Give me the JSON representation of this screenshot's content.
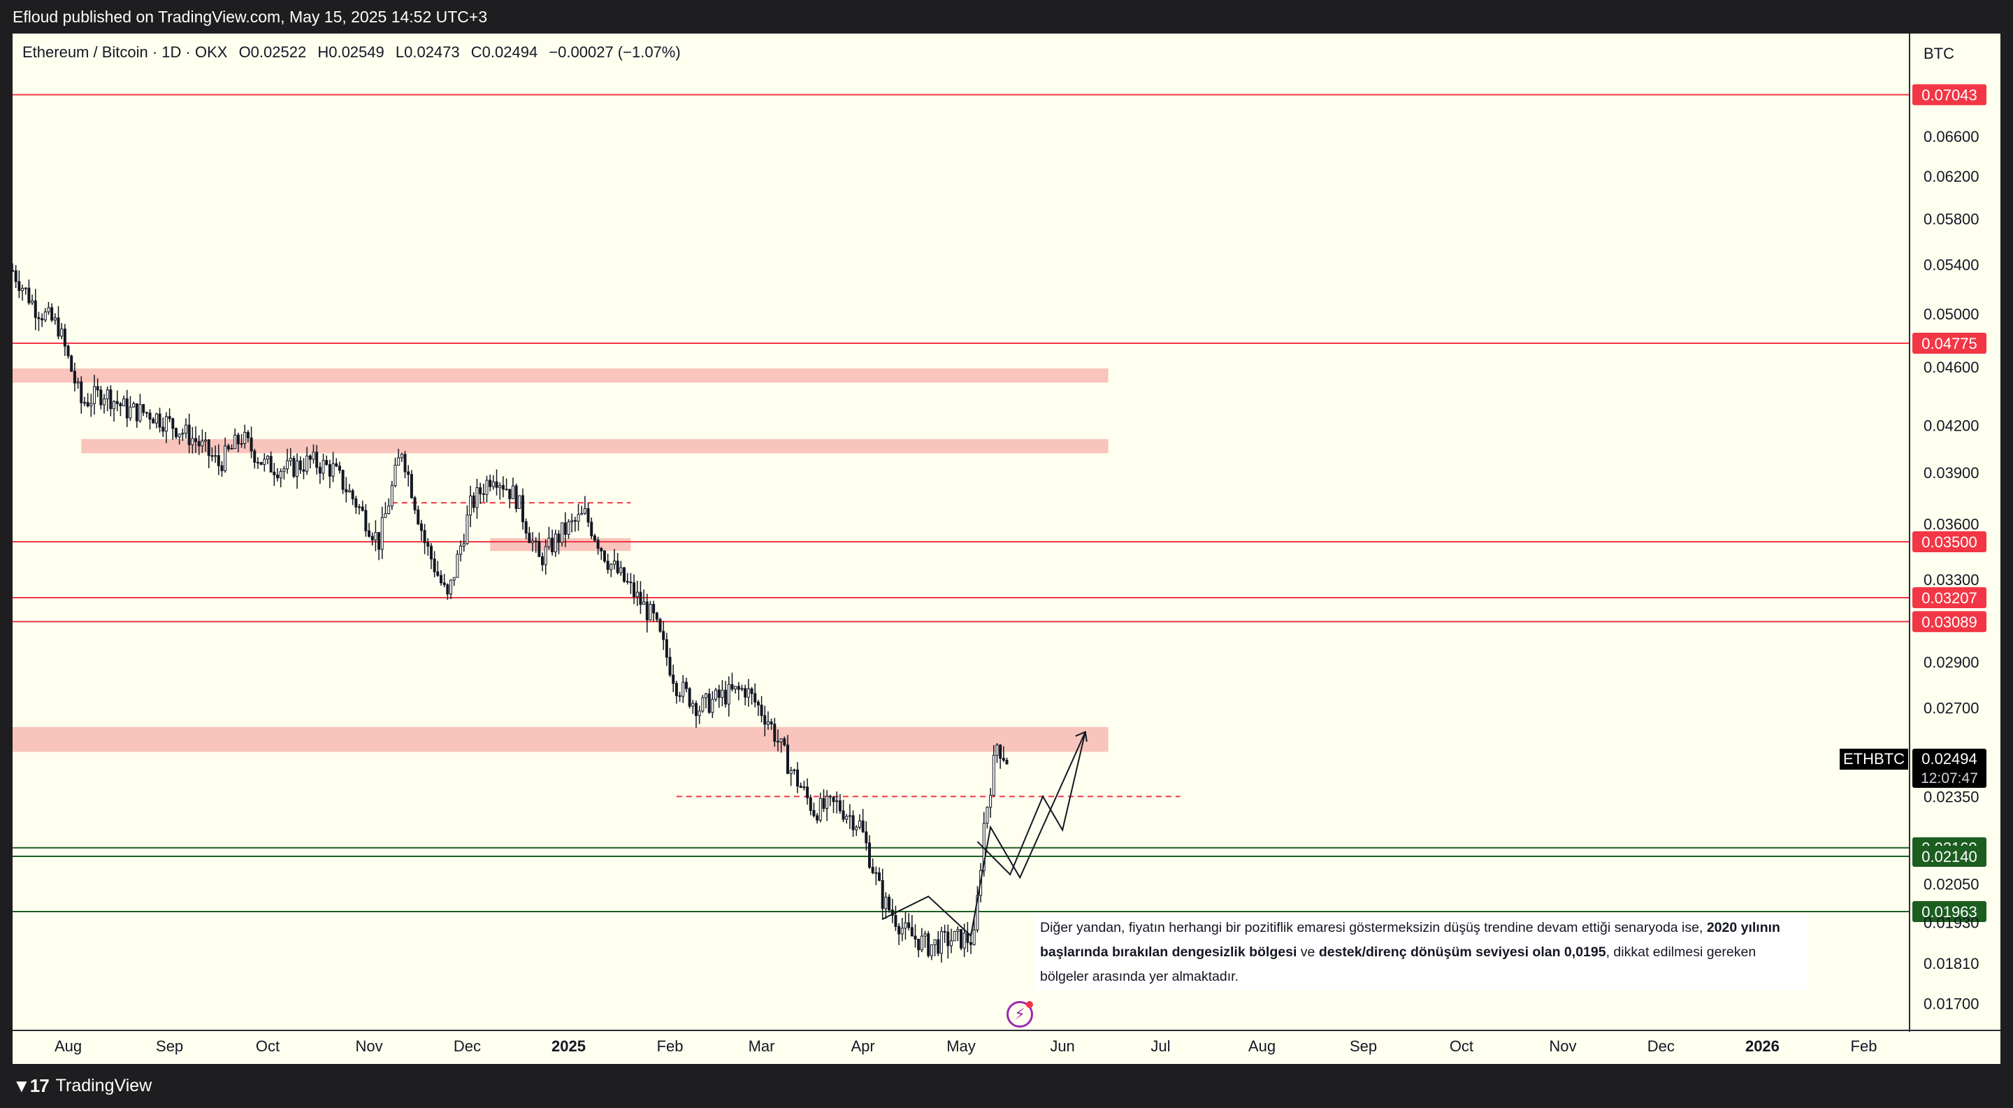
{
  "publish_info": "Efloud published on TradingView.com, May 15, 2025 14:52 UTC+3",
  "brand": "TradingView",
  "legend": {
    "symbol": "Ethereum / Bitcoin · 1D · OKX",
    "open": "O0.02522",
    "high": "H0.02549",
    "low": "L0.02473",
    "close": "C0.02494",
    "change": "−0.00027 (−1.07%)"
  },
  "currency_label": "BTC",
  "note": {
    "part1": "Diğer yandan, fiyatın herhangi bir pozitiflik emaresi göstermeksizin düşüş trendine devam ettiği senaryoda ise, ",
    "bold1": "2020 yılının başlarında bırakılan dengesizlik bölgesi",
    "part2": " ve ",
    "bold2": "destek/direnç dönüşüm seviyesi olan 0,0195",
    "part3": ", dikkat edilmesi gereken bölgeler arasında yer almaktadır."
  },
  "colors": {
    "background": "#fffff0",
    "red_level": "#f23645",
    "green_level": "#1b5e20",
    "zone": "#f8c4bc",
    "candle": "#131722"
  },
  "chart_data": {
    "type": "candlestick",
    "symbol": "ETHBTC",
    "exchange": "OKX",
    "interval": "1D",
    "y_scale": "log",
    "ylim": [
      0.0163,
      0.0775
    ],
    "x_range": [
      "2024-07-15",
      "2026-02-15"
    ],
    "y_ticks": [
      "0.06600",
      "0.06200",
      "0.05800",
      "0.05400",
      "0.05000",
      "0.04600",
      "0.04200",
      "0.03900",
      "0.03600",
      "0.03300",
      "0.02900",
      "0.02700",
      "0.02350",
      "0.02050",
      "0.01930",
      "0.01810",
      "0.01700"
    ],
    "x_ticks": [
      "Aug",
      "Sep",
      "Oct",
      "Nov",
      "Dec",
      "2025",
      "Feb",
      "Mar",
      "Apr",
      "May",
      "Jun",
      "Jul",
      "Aug",
      "Sep",
      "Oct",
      "Nov",
      "Dec",
      "2026",
      "Feb"
    ],
    "x_tick_dates": [
      "2024-08-01",
      "2024-09-01",
      "2024-10-01",
      "2024-11-01",
      "2024-12-01",
      "2025-01-01",
      "2025-02-01",
      "2025-03-01",
      "2025-04-01",
      "2025-05-01",
      "2025-06-01",
      "2025-07-01",
      "2025-08-01",
      "2025-09-01",
      "2025-10-01",
      "2025-11-01",
      "2025-12-01",
      "2026-01-01",
      "2026-02-01"
    ],
    "bold_x_ticks": [
      "2025",
      "2026"
    ],
    "price_path": [
      [
        "2024-07-15",
        0.0535
      ],
      [
        "2024-07-22",
        0.0505
      ],
      [
        "2024-07-29",
        0.049
      ],
      [
        "2024-08-05",
        0.0435
      ],
      [
        "2024-08-12",
        0.0442
      ],
      [
        "2024-08-19",
        0.043
      ],
      [
        "2024-08-26",
        0.0428
      ],
      [
        "2024-09-02",
        0.042
      ],
      [
        "2024-09-09",
        0.041
      ],
      [
        "2024-09-16",
        0.0395
      ],
      [
        "2024-09-23",
        0.0412
      ],
      [
        "2024-09-30",
        0.0395
      ],
      [
        "2024-10-07",
        0.0392
      ],
      [
        "2024-10-14",
        0.0397
      ],
      [
        "2024-10-21",
        0.0392
      ],
      [
        "2024-10-28",
        0.0372
      ],
      [
        "2024-11-04",
        0.035
      ],
      [
        "2024-11-11",
        0.0405
      ],
      [
        "2024-11-18",
        0.035
      ],
      [
        "2024-11-25",
        0.032
      ],
      [
        "2024-12-02",
        0.037
      ],
      [
        "2024-12-09",
        0.039
      ],
      [
        "2024-12-16",
        0.0375
      ],
      [
        "2024-12-23",
        0.034
      ],
      [
        "2024-12-30",
        0.0355
      ],
      [
        "2025-01-06",
        0.0365
      ],
      [
        "2025-01-13",
        0.034
      ],
      [
        "2025-01-20",
        0.0325
      ],
      [
        "2025-01-27",
        0.031
      ],
      [
        "2025-02-03",
        0.028
      ],
      [
        "2025-02-10",
        0.027
      ],
      [
        "2025-02-17",
        0.0275
      ],
      [
        "2025-02-24",
        0.0278
      ],
      [
        "2025-03-03",
        0.0265
      ],
      [
        "2025-03-10",
        0.0245
      ],
      [
        "2025-03-17",
        0.023
      ],
      [
        "2025-03-24",
        0.0232
      ],
      [
        "2025-03-31",
        0.0225
      ],
      [
        "2025-04-07",
        0.02
      ],
      [
        "2025-04-14",
        0.019
      ],
      [
        "2025-04-21",
        0.0186
      ],
      [
        "2025-04-28",
        0.0188
      ],
      [
        "2025-05-05",
        0.0188
      ],
      [
        "2025-05-08",
        0.0225
      ],
      [
        "2025-05-12",
        0.0255
      ],
      [
        "2025-05-15",
        0.0249
      ]
    ],
    "last_price": "0.02494",
    "countdown": "12:07:47",
    "horizontal_levels": [
      {
        "value": 0.07043,
        "label": "0.07043",
        "color": "red"
      },
      {
        "value": 0.04775,
        "label": "0.04775",
        "color": "red"
      },
      {
        "value": 0.035,
        "label": "0.03500",
        "color": "red"
      },
      {
        "value": 0.03207,
        "label": "0.03207",
        "color": "red"
      },
      {
        "value": 0.03089,
        "label": "0.03089",
        "color": "red"
      },
      {
        "value": 0.02169,
        "label": "0.02169",
        "color": "green"
      },
      {
        "value": 0.0214,
        "label": "0.02140",
        "color": "green"
      },
      {
        "value": 0.01963,
        "label": "0.01963",
        "color": "green"
      }
    ],
    "zones": [
      {
        "from": "2024-07-15",
        "to": "2025-06-15",
        "low": 0.0449,
        "high": 0.0459
      },
      {
        "from": "2024-08-05",
        "to": "2025-06-15",
        "low": 0.0402,
        "high": 0.0411
      },
      {
        "from": "2024-12-08",
        "to": "2025-01-20",
        "low": 0.0345,
        "high": 0.0352
      },
      {
        "from": "2024-07-15",
        "to": "2025-06-15",
        "low": 0.0252,
        "high": 0.0262
      }
    ],
    "dashed_levels": [
      {
        "value": 0.0372,
        "from": "2024-11-08",
        "to": "2025-01-20"
      },
      {
        "value": 0.0235,
        "from": "2025-02-03",
        "to": "2025-07-07"
      }
    ],
    "projection_paths": [
      [
        [
          "2025-04-07",
          0.0194
        ],
        [
          "2025-04-21",
          0.0201
        ],
        [
          "2025-05-04",
          0.0189
        ],
        [
          "2025-05-10",
          0.0224
        ],
        [
          "2025-05-19",
          0.0207
        ],
        [
          "2025-06-08",
          0.026
        ]
      ],
      [
        [
          "2025-05-06",
          0.0219
        ],
        [
          "2025-05-16",
          0.0208
        ],
        [
          "2025-05-26",
          0.0235
        ],
        [
          "2025-06-01",
          0.0223
        ],
        [
          "2025-06-08",
          0.026
        ]
      ]
    ]
  }
}
